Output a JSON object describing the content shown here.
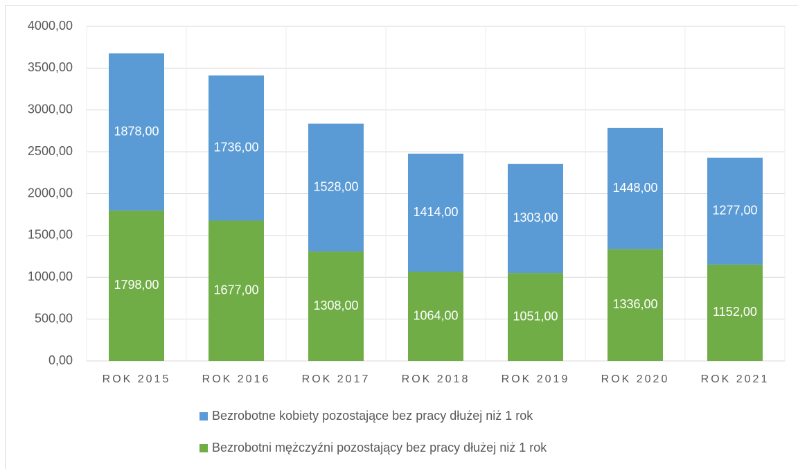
{
  "chart_data": {
    "type": "stacked_bar",
    "categories": [
      "ROK 2015",
      "ROK 2016",
      "ROK 2017",
      "ROK 2018",
      "ROK 2019",
      "ROK 2020",
      "ROK 2021"
    ],
    "series": [
      {
        "name": "Bezrobotni mężczyźni pozostający bez pracy dłużej niż 1 rok",
        "color": "#70ad47",
        "values": [
          1798,
          1677,
          1308,
          1064,
          1051,
          1336,
          1152
        ],
        "value_labels": [
          "1798,00",
          "1677,00",
          "1308,00",
          "1064,00",
          "1051,00",
          "1336,00",
          "1152,00"
        ]
      },
      {
        "name": "Bezrobotne kobiety pozostające bez pracy dłużej niż 1 rok",
        "color": "#5b9bd5",
        "values": [
          1878,
          1736,
          1528,
          1414,
          1303,
          1448,
          1277
        ],
        "value_labels": [
          "1878,00",
          "1736,00",
          "1528,00",
          "1414,00",
          "1303,00",
          "1448,00",
          "1277,00"
        ]
      }
    ],
    "ylim": [
      0,
      4000
    ],
    "yticks": [
      {
        "value": 0,
        "label": "0,00"
      },
      {
        "value": 500,
        "label": "500,00"
      },
      {
        "value": 1000,
        "label": "1000,00"
      },
      {
        "value": 1500,
        "label": "1500,00"
      },
      {
        "value": 2000,
        "label": "2000,00"
      },
      {
        "value": 2500,
        "label": "2500,00"
      },
      {
        "value": 3000,
        "label": "3000,00"
      },
      {
        "value": 3500,
        "label": "3500,00"
      },
      {
        "value": 4000,
        "label": "4000,00"
      }
    ],
    "grid": true,
    "legend": "bottom"
  }
}
